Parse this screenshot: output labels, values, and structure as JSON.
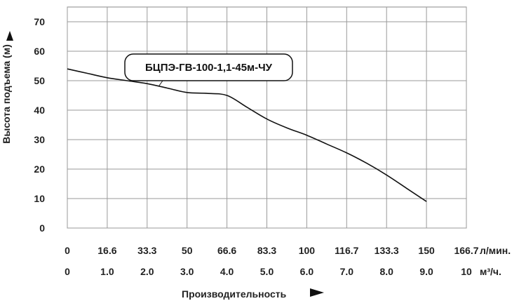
{
  "chart_data": {
    "type": "line",
    "title": "",
    "ylabel": "Высота подъема (м)",
    "xlabel": "Производительность",
    "ylim": [
      0,
      75
    ],
    "y_ticks": [
      "0",
      "10",
      "20",
      "30",
      "40",
      "50",
      "60",
      "70"
    ],
    "x_axes": [
      {
        "unit": "л/мин.",
        "ticks": [
          "0",
          "16.6",
          "33.3",
          "50",
          "66.6",
          "83.3",
          "100",
          "116.7",
          "133.3",
          "150",
          "166.7"
        ]
      },
      {
        "unit": "м³/ч.",
        "ticks": [
          "0",
          "1.0",
          "2.0",
          "3.0",
          "4.0",
          "5.0",
          "6.0",
          "7.0",
          "8.0",
          "9.0",
          "10"
        ]
      }
    ],
    "xlim": [
      0,
      10
    ],
    "grid": true,
    "series": [
      {
        "name": "БЦПЭ-ГВ-100-1,1-45м-ЧУ",
        "x": [
          0,
          0.5,
          1.0,
          1.5,
          2.0,
          2.5,
          3.0,
          3.5,
          4.0,
          4.5,
          5.0,
          5.5,
          6.0,
          6.5,
          7.0,
          7.5,
          8.0,
          8.5,
          9.0
        ],
        "y": [
          54,
          52.5,
          51,
          50,
          49,
          47.5,
          46,
          45.7,
          45,
          41,
          37,
          34,
          31.5,
          28.5,
          25.5,
          22,
          18,
          13.5,
          9
        ]
      }
    ]
  }
}
